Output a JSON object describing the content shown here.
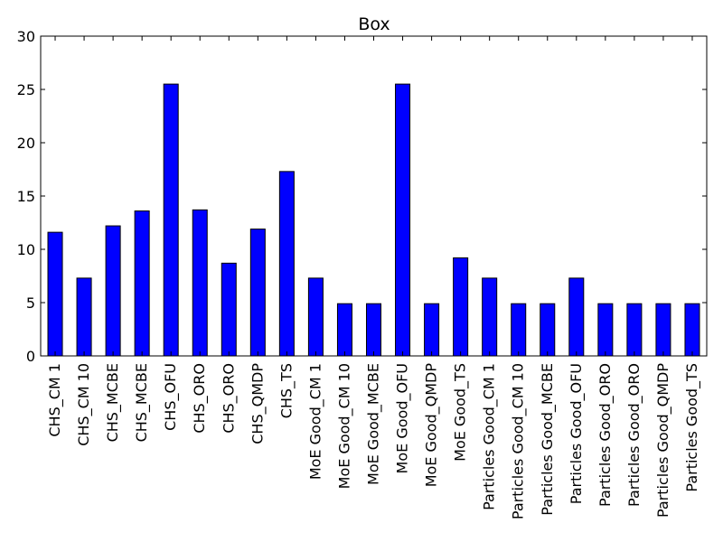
{
  "chart_data": {
    "type": "bar",
    "title": "Box",
    "xlabel": "",
    "ylabel": "",
    "ylim": [
      0,
      30
    ],
    "yticks": [
      0,
      5,
      10,
      15,
      20,
      25,
      30
    ],
    "categories": [
      "CHS_CM 1",
      "CHS_CM 10",
      "CHS_MCBE",
      "CHS_MCBE",
      "CHS_OFU",
      "CHS_ORO",
      "CHS_ORO",
      "CHS_QMDP",
      "CHS_TS",
      "MoE Good_CM 1",
      "MoE Good_CM 10",
      "MoE Good_MCBE",
      "MoE Good_OFU",
      "MoE Good_QMDP",
      "MoE Good_TS",
      "Particles Good_CM 1",
      "Particles Good_CM 10",
      "Particles Good_MCBE",
      "Particles Good_OFU",
      "Particles Good_ORO",
      "Particles Good_ORO",
      "Particles Good_QMDP",
      "Particles Good_TS"
    ],
    "values": [
      11.6,
      7.3,
      12.2,
      13.6,
      25.5,
      13.7,
      8.7,
      11.9,
      17.3,
      7.3,
      4.9,
      4.9,
      25.5,
      4.9,
      9.2,
      7.3,
      4.9,
      4.9,
      7.3,
      4.9,
      4.9,
      4.9,
      4.9
    ],
    "bar_color": "#0000ff",
    "edge_color": "#000000",
    "grid": false,
    "legend": "none"
  }
}
